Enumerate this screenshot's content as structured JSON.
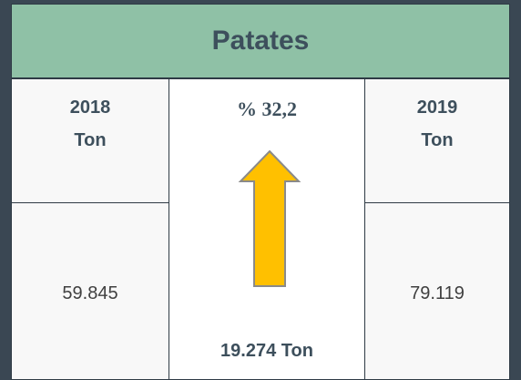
{
  "title": "Patates",
  "left": {
    "year": "2018",
    "unit": "Ton",
    "value": "59.845"
  },
  "right": {
    "year": "2019",
    "unit": "Ton",
    "value": "79.119"
  },
  "change": {
    "percent": "% 32,2",
    "difference": "19.274 Ton"
  }
}
